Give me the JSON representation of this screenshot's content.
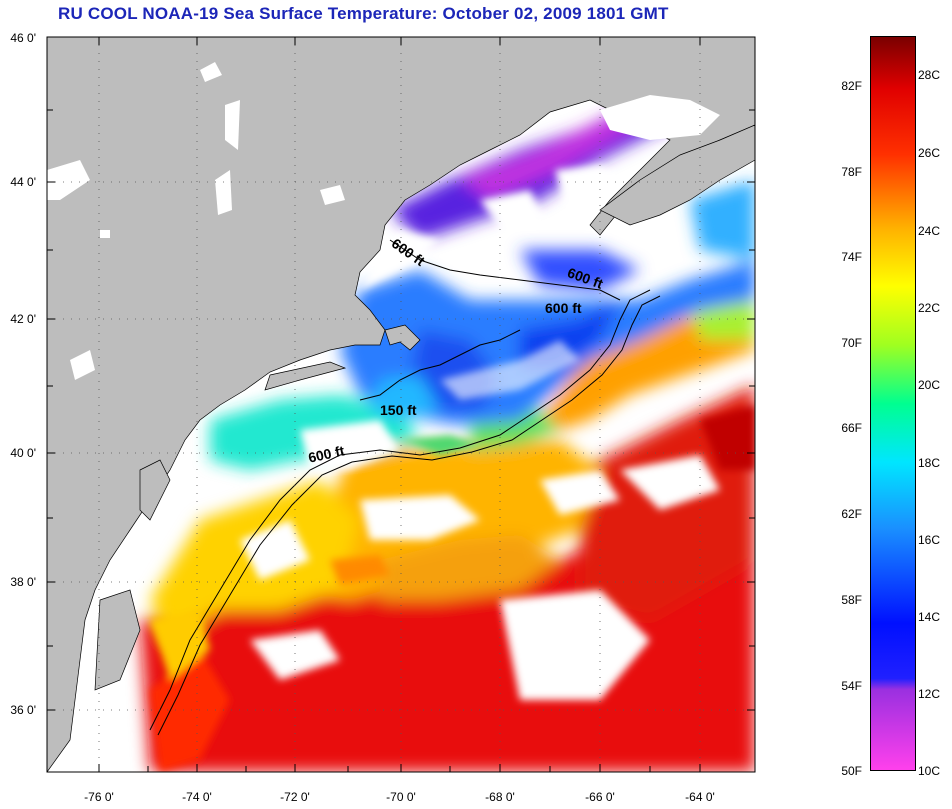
{
  "title": "RU COOL  NOAA-19  Sea Surface Temperature:  October 02, 2009 1801 GMT",
  "lat_labels": [
    "46 0'",
    "44 0'",
    "42 0'",
    "40 0'",
    "38 0'",
    "36 0'"
  ],
  "lon_labels": [
    "-76 0'",
    "-74 0'",
    "-72 0'",
    "-70 0'",
    "-68 0'",
    "-66 0'",
    "-64 0'"
  ],
  "colorbar": {
    "fahrenheit": [
      "82F",
      "78F",
      "74F",
      "70F",
      "66F",
      "62F",
      "58F",
      "54F",
      "50F"
    ],
    "celsius": [
      "28C",
      "26C",
      "24C",
      "22C",
      "20C",
      "18C",
      "16C",
      "14C",
      "12C",
      "10C"
    ]
  },
  "depth_contours": [
    "600 ft",
    "600 ft",
    "600 ft",
    "150 ft",
    "600 ft"
  ],
  "colors": {
    "land": "#bdbdbd",
    "cloud": "#ffffff",
    "title": "#1c26b8",
    "cold": "#ff44e0",
    "warm": "#8a0000"
  }
}
